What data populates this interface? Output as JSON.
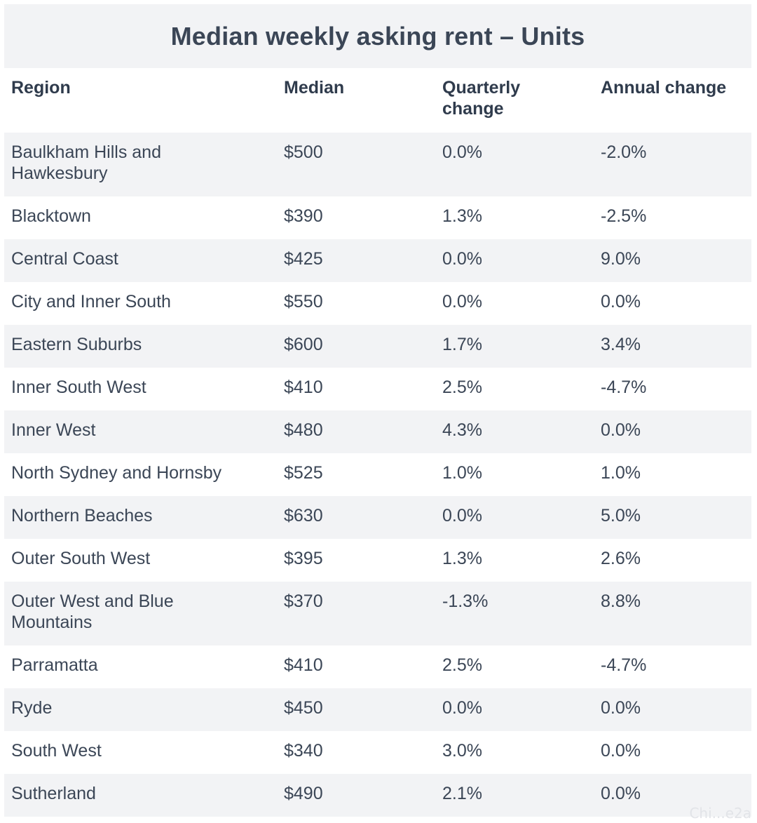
{
  "chart_data": {
    "type": "table",
    "title": "Median weekly asking rent – Units",
    "columns": [
      "Region",
      "Median",
      "Quarterly change",
      "Annual change"
    ],
    "rows": [
      {
        "region": "Baulkham Hills and Hawkesbury",
        "median": "$500",
        "quarterly": "0.0%",
        "annual": "-2.0%"
      },
      {
        "region": "Blacktown",
        "median": "$390",
        "quarterly": "1.3%",
        "annual": "-2.5%"
      },
      {
        "region": "Central Coast",
        "median": "$425",
        "quarterly": "0.0%",
        "annual": "9.0%"
      },
      {
        "region": "City and Inner South",
        "median": "$550",
        "quarterly": "0.0%",
        "annual": "0.0%"
      },
      {
        "region": "Eastern Suburbs",
        "median": "$600",
        "quarterly": "1.7%",
        "annual": "3.4%"
      },
      {
        "region": "Inner South West",
        "median": "$410",
        "quarterly": "2.5%",
        "annual": "-4.7%"
      },
      {
        "region": "Inner West",
        "median": "$480",
        "quarterly": "4.3%",
        "annual": "0.0%"
      },
      {
        "region": "North Sydney and Hornsby",
        "median": "$525",
        "quarterly": "1.0%",
        "annual": "1.0%"
      },
      {
        "region": "Northern Beaches",
        "median": "$630",
        "quarterly": "0.0%",
        "annual": "5.0%"
      },
      {
        "region": "Outer South West",
        "median": "$395",
        "quarterly": "1.3%",
        "annual": "2.6%"
      },
      {
        "region": "Outer West and Blue Mountains",
        "median": "$370",
        "quarterly": "-1.3%",
        "annual": "8.8%"
      },
      {
        "region": "Parramatta",
        "median": "$410",
        "quarterly": "2.5%",
        "annual": "-4.7%"
      },
      {
        "region": "Ryde",
        "median": "$450",
        "quarterly": "0.0%",
        "annual": "0.0%"
      },
      {
        "region": "South West",
        "median": "$340",
        "quarterly": "3.0%",
        "annual": "0.0%"
      },
      {
        "region": "Sutherland",
        "median": "$490",
        "quarterly": "2.1%",
        "annual": "0.0%"
      }
    ]
  },
  "watermark": "Chi...e2a",
  "colors": {
    "stripe": "#f2f3f5",
    "text": "#3b4656"
  }
}
